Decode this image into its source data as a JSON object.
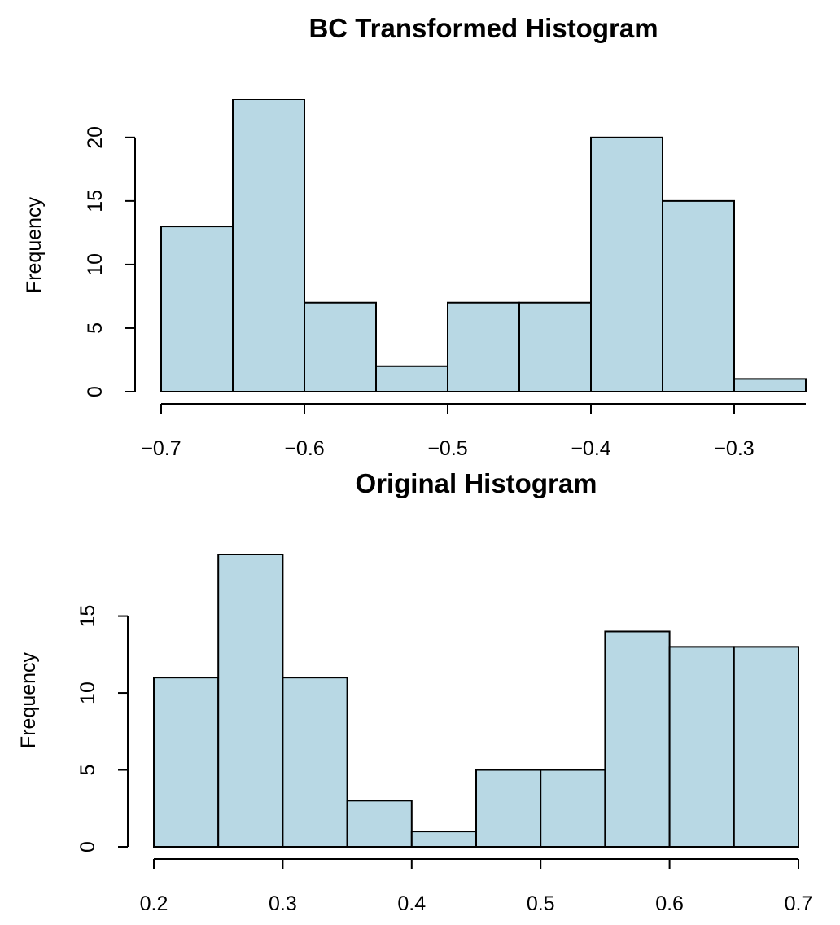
{
  "chart_data": [
    {
      "type": "bar",
      "title": "BC Transformed Histogram",
      "xlabel": "",
      "ylabel": "Frequency",
      "bin_edges": [
        -0.7,
        -0.65,
        -0.6,
        -0.55,
        -0.5,
        -0.45,
        -0.4,
        -0.35,
        -0.3,
        -0.25
      ],
      "values": [
        13,
        23,
        7,
        2,
        7,
        7,
        20,
        15,
        1
      ],
      "xlim": [
        -0.7,
        -0.25
      ],
      "ylim": [
        0,
        23
      ],
      "x_ticks": [
        -0.7,
        -0.6,
        -0.5,
        -0.4,
        -0.3
      ],
      "x_tick_labels": [
        "−0.7",
        "−0.6",
        "−0.5",
        "−0.4",
        "−0.3"
      ],
      "y_ticks": [
        0,
        5,
        10,
        15,
        20
      ],
      "y_tick_labels": [
        "0",
        "5",
        "10",
        "15",
        "20"
      ],
      "bar_color": "#b8d8e4",
      "grid": false
    },
    {
      "type": "bar",
      "title": "Original Histogram",
      "xlabel": "",
      "ylabel": "Frequency",
      "bin_edges": [
        0.2,
        0.25,
        0.3,
        0.35,
        0.4,
        0.45,
        0.5,
        0.55,
        0.6,
        0.65,
        0.7
      ],
      "values": [
        11,
        19,
        11,
        3,
        1,
        5,
        5,
        14,
        13,
        13
      ],
      "xlim": [
        0.2,
        0.7
      ],
      "ylim": [
        0,
        19
      ],
      "x_ticks": [
        0.2,
        0.3,
        0.4,
        0.5,
        0.6,
        0.7
      ],
      "x_tick_labels": [
        "0.2",
        "0.3",
        "0.4",
        "0.5",
        "0.6",
        "0.7"
      ],
      "y_ticks": [
        0,
        5,
        10,
        15
      ],
      "y_tick_labels": [
        "0",
        "5",
        "10",
        "15"
      ],
      "bar_color": "#b8d8e4",
      "grid": false
    }
  ]
}
